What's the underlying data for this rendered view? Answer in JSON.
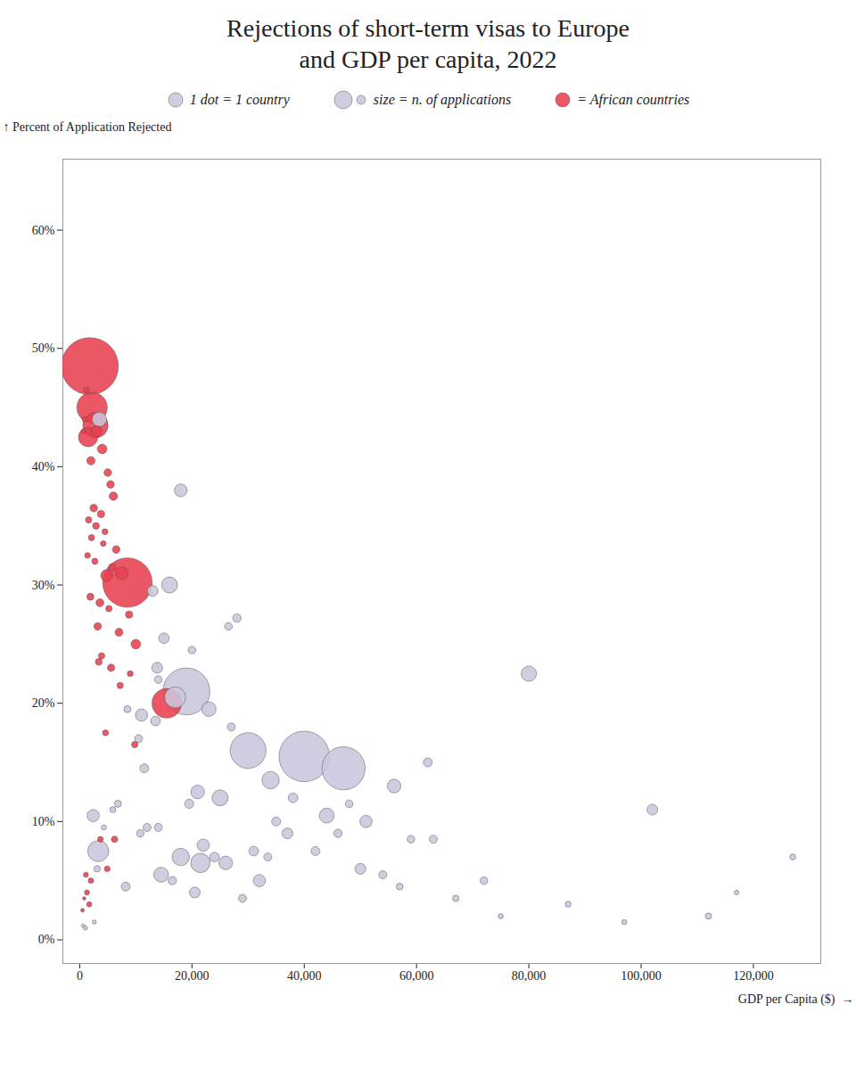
{
  "chart_data": {
    "type": "scatter",
    "title": "Rejections of short-term visas to Europe\nand GDP per capita, 2022",
    "xlabel": "GDP per Capita ($)  →",
    "ylabel": "↑ Percent of Application Rejected",
    "xlim": [
      -3000,
      132000
    ],
    "ylim": [
      -2,
      66
    ],
    "xticks": [
      0,
      {
        "value": 20000,
        "label": "20,000"
      },
      {
        "value": 40000,
        "label": "40,000"
      },
      {
        "value": 60000,
        "label": "60,000"
      },
      {
        "value": 80000,
        "label": "80,000"
      },
      {
        "value": 100000,
        "label": "100,000"
      },
      {
        "value": 120000,
        "label": "120,000"
      }
    ],
    "yticks": [
      {
        "value": 0,
        "label": "0%"
      },
      {
        "value": 10,
        "label": "10%"
      },
      {
        "value": 20,
        "label": "20%"
      },
      {
        "value": 30,
        "label": "30%"
      },
      {
        "value": 40,
        "label": "40%"
      },
      {
        "value": 50,
        "label": "50%"
      },
      {
        "value": 60,
        "label": "60%"
      }
    ],
    "grid": false,
    "annotations": [
      {
        "text": "1 dot = 1 country",
        "marker": "dot",
        "color": "#cac6dc"
      },
      {
        "text": "size = n. of applications",
        "marker": "sizes",
        "color": "#cac6dc"
      },
      {
        "text": "= African countries",
        "marker": "dot",
        "color": "#e84050"
      }
    ],
    "x": [
      1800,
      2200,
      2800,
      1500,
      3500,
      3000,
      4000,
      2000,
      5000,
      5500,
      6000,
      18000,
      2500,
      3800,
      1600,
      2900,
      4500,
      2100,
      4200,
      6500,
      1400,
      2700,
      5800,
      7500,
      4800,
      8500,
      16000,
      13000,
      1900,
      3600,
      5200,
      8800,
      28000,
      3200,
      7000,
      15000,
      10000,
      20000,
      3900,
      3400,
      5600,
      9000,
      14000,
      7200,
      19000,
      17000,
      15500,
      23000,
      11000,
      13500,
      27000,
      4600,
      80000,
      9800,
      30000,
      40000,
      47000,
      34000,
      56000,
      21000,
      25000,
      6800,
      5900,
      102000,
      44000,
      2400,
      51000,
      12000,
      37000,
      63000,
      22000,
      31000,
      18000,
      26000,
      3100,
      50000,
      14500,
      32000,
      8200,
      20500,
      29000,
      21500,
      16500,
      24000,
      42000,
      54000,
      72000,
      87000,
      112000,
      127000,
      3300,
      1100,
      1300,
      3700,
      4900,
      1700,
      2000,
      6200,
      62000,
      38000,
      4300,
      8500,
      11500,
      13800,
      10500,
      59000,
      46000,
      35000,
      97000,
      117000,
      1000,
      2600,
      500,
      600,
      800,
      57000,
      67000,
      75000,
      900,
      1200,
      700,
      14000,
      19500,
      26500,
      33500,
      48000,
      10800
    ],
    "values": [
      48.5,
      45.0,
      43.5,
      42.5,
      44.0,
      43.0,
      41.5,
      40.5,
      39.5,
      38.5,
      37.5,
      38.0,
      36.5,
      36.0,
      35.5,
      35.0,
      34.5,
      34.0,
      33.5,
      33.0,
      32.5,
      32.0,
      31.5,
      31.0,
      30.8,
      30.2,
      30.0,
      29.5,
      29.0,
      28.5,
      28.0,
      27.5,
      27.2,
      26.5,
      26.0,
      25.5,
      25.0,
      24.5,
      24.0,
      23.5,
      23.0,
      22.5,
      22.0,
      21.5,
      21.0,
      20.5,
      20.0,
      19.5,
      19.0,
      18.5,
      18.0,
      17.5,
      22.5,
      16.5,
      16.0,
      15.5,
      14.5,
      13.5,
      13.0,
      12.5,
      12.0,
      11.5,
      11.0,
      11.0,
      10.5,
      10.5,
      10.0,
      9.5,
      9.0,
      8.5,
      8.0,
      7.5,
      7.0,
      6.5,
      6.0,
      6.0,
      5.5,
      5.0,
      4.5,
      4.0,
      3.5,
      6.5,
      5.0,
      7.0,
      7.5,
      5.5,
      5.0,
      3.0,
      2.0,
      7.0,
      7.5,
      5.5,
      4.0,
      8.5,
      6.0,
      3.0,
      5.0,
      8.5,
      15.0,
      12.0,
      9.5,
      19.5,
      14.5,
      23.0,
      17.0,
      8.5,
      9.0,
      10.0,
      1.5,
      4.0,
      1.0,
      1.5,
      2.5,
      1.2,
      3.5,
      4.5,
      3.5,
      2.0,
      44.0,
      46.5,
      43.0,
      9.5,
      11.5,
      26.5,
      7.0,
      11.5,
      9.0
    ],
    "sizes": [
      280000,
      80000,
      55000,
      32000,
      18000,
      10000,
      8000,
      6000,
      5000,
      5000,
      6000,
      14000,
      5000,
      4500,
      3500,
      4000,
      3000,
      3200,
      2800,
      5000,
      2800,
      3200,
      4500,
      14000,
      12000,
      210000,
      22000,
      10000,
      4200,
      5500,
      3500,
      4500,
      6000,
      4800,
      5500,
      9500,
      8000,
      5000,
      3500,
      4000,
      4800,
      3000,
      5000,
      3500,
      190000,
      38000,
      75000,
      18000,
      13000,
      8000,
      5500,
      3000,
      20000,
      3500,
      110000,
      220000,
      160000,
      26000,
      16000,
      16000,
      22000,
      4200,
      3000,
      10000,
      19000,
      13000,
      13000,
      5500,
      10000,
      5500,
      13000,
      8000,
      26000,
      16000,
      3500,
      10000,
      19000,
      13000,
      6800,
      10000,
      5500,
      32000,
      6000,
      8000,
      6800,
      5500,
      5000,
      3000,
      3500,
      3000,
      38000,
      2200,
      2200,
      2800,
      2800,
      2200,
      2500,
      3500,
      6800,
      8000,
      2200,
      4200,
      6800,
      10000,
      5500,
      5000,
      6000,
      6800,
      2200,
      1800,
      1500,
      1500,
      1200,
      1000,
      1000,
      4000,
      3500,
      2200,
      2500,
      2800,
      2000,
      5500,
      7000,
      5000,
      5500,
      5000,
      4500
    ],
    "colors": [
      "#e84050",
      "#e84050",
      "#e84050",
      "#e84050",
      "#cac6dc",
      "#e84050",
      "#e84050",
      "#e84050",
      "#e84050",
      "#e84050",
      "#e84050",
      "#cac6dc",
      "#e84050",
      "#e84050",
      "#e84050",
      "#e84050",
      "#e84050",
      "#e84050",
      "#e84050",
      "#e84050",
      "#e84050",
      "#e84050",
      "#e84050",
      "#e84050",
      "#e84050",
      "#e84050",
      "#cac6dc",
      "#cac6dc",
      "#e84050",
      "#e84050",
      "#e84050",
      "#e84050",
      "#cac6dc",
      "#e84050",
      "#e84050",
      "#cac6dc",
      "#e84050",
      "#cac6dc",
      "#e84050",
      "#e84050",
      "#e84050",
      "#e84050",
      "#cac6dc",
      "#e84050",
      "#cac6dc",
      "#cac6dc",
      "#e84050",
      "#cac6dc",
      "#cac6dc",
      "#cac6dc",
      "#cac6dc",
      "#e84050",
      "#cac6dc",
      "#e84050",
      "#cac6dc",
      "#cac6dc",
      "#cac6dc",
      "#cac6dc",
      "#cac6dc",
      "#cac6dc",
      "#cac6dc",
      "#cac6dc",
      "#cac6dc",
      "#cac6dc",
      "#cac6dc",
      "#cac6dc",
      "#cac6dc",
      "#cac6dc",
      "#cac6dc",
      "#cac6dc",
      "#cac6dc",
      "#cac6dc",
      "#cac6dc",
      "#cac6dc",
      "#cac6dc",
      "#cac6dc",
      "#cac6dc",
      "#cac6dc",
      "#cac6dc",
      "#cac6dc",
      "#cac6dc",
      "#cac6dc",
      "#cac6dc",
      "#cac6dc",
      "#cac6dc",
      "#cac6dc",
      "#cac6dc",
      "#cac6dc",
      "#cac6dc",
      "#cac6dc",
      "#cac6dc",
      "#e84050",
      "#e84050",
      "#e84050",
      "#e84050",
      "#e84050",
      "#e84050",
      "#e84050",
      "#cac6dc",
      "#cac6dc",
      "#cac6dc",
      "#cac6dc",
      "#cac6dc",
      "#cac6dc",
      "#cac6dc",
      "#cac6dc",
      "#cac6dc",
      "#cac6dc",
      "#cac6dc",
      "#cac6dc",
      "#cac6dc",
      "#cac6dc",
      "#e84050",
      "#cac6dc",
      "#e84050",
      "#cac6dc",
      "#cac6dc",
      "#cac6dc",
      "#e84050",
      "#e84050",
      "#e84050",
      "#cac6dc",
      "#cac6dc",
      "#cac6dc",
      "#cac6dc",
      "#cac6dc",
      "#cac6dc"
    ]
  }
}
